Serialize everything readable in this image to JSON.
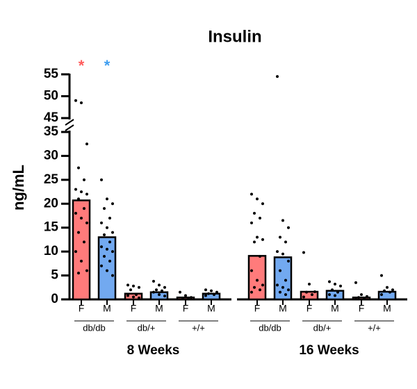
{
  "chart_data": {
    "type": "bar",
    "title": "Insulin",
    "y_label": "ng/mL",
    "ylim": [
      0,
      55
    ],
    "y_break": [
      35,
      45
    ],
    "yticks": [
      0,
      5,
      10,
      15,
      20,
      25,
      30,
      35,
      45,
      50,
      55
    ],
    "groups": [
      {
        "label": "8 Weeks",
        "subgroups": [
          {
            "label": "db/db",
            "bars": [
              {
                "category": "F",
                "color": "#ff7b7b",
                "annotation": "*",
                "annotation_color": "#ff5c5c",
                "value": 20.7,
                "points": [
                  49,
                  48.5,
                  32.5,
                  27.5,
                  25,
                  23,
                  22.5,
                  22,
                  21,
                  19,
                  18,
                  17,
                  16,
                  14,
                  12,
                  10,
                  8,
                  6,
                  5.5
                ]
              },
              {
                "category": "M",
                "color": "#72a9f0",
                "annotation": "*",
                "annotation_color": "#3f9ef0",
                "value": 13,
                "points": [
                  25,
                  21,
                  20,
                  19,
                  17,
                  16,
                  15,
                  14,
                  13.5,
                  12,
                  11,
                  10.5,
                  10,
                  9,
                  8,
                  7,
                  6,
                  5
                ]
              }
            ]
          },
          {
            "label": "db/+",
            "bars": [
              {
                "category": "F",
                "color": "#ff7b7b",
                "value": 1.2,
                "points": [
                  3,
                  2.8,
                  2.5,
                  2,
                  1,
                  0.8,
                  0.5,
                  0.3
                ]
              },
              {
                "category": "M",
                "color": "#72a9f0",
                "value": 1.5,
                "points": [
                  3.8,
                  3,
                  2.5,
                  2,
                  1.8,
                  1.5,
                  1,
                  0.7
                ]
              }
            ]
          },
          {
            "label": "+/+",
            "bars": [
              {
                "category": "F",
                "color": "#ff7b7b",
                "value": 0.4,
                "points": [
                  1.5,
                  0.8,
                  0.4,
                  0.2,
                  0.1
                ]
              },
              {
                "category": "M",
                "color": "#72a9f0",
                "value": 1.2,
                "points": [
                  2,
                  1.8,
                  1.5,
                  1.2,
                  1,
                  0.8
                ]
              }
            ]
          }
        ]
      },
      {
        "label": "16 Weeks",
        "subgroups": [
          {
            "label": "db/db",
            "bars": [
              {
                "category": "F",
                "color": "#ff7b7b",
                "value": 9.1,
                "points": [
                  22,
                  21,
                  20,
                  18,
                  17,
                  16,
                  13,
                  12.5,
                  12,
                  9,
                  6,
                  4,
                  3,
                  2.5,
                  2,
                  1.5
                ]
              },
              {
                "category": "M",
                "color": "#72a9f0",
                "value": 8.8,
                "points": [
                  54.5,
                  16.5,
                  15,
                  13,
                  12,
                  10,
                  9.5,
                  8,
                  6,
                  4,
                  3,
                  2.5,
                  2,
                  1.5,
                  1
                ]
              }
            ]
          },
          {
            "label": "db/+",
            "bars": [
              {
                "category": "F",
                "color": "#ff7b7b",
                "value": 1.6,
                "points": [
                  9.8,
                  3.2,
                  1.6,
                  1.5,
                  1,
                  0.5
                ]
              },
              {
                "category": "M",
                "color": "#72a9f0",
                "value": 1.8,
                "points": [
                  3.7,
                  3.2,
                  2.8,
                  2,
                  1.5,
                  1,
                  0.8
                ]
              }
            ]
          },
          {
            "label": "+/+",
            "bars": [
              {
                "category": "F",
                "color": "#ff7b7b",
                "value": 0.4,
                "points": [
                  3.5,
                  1,
                  0.6,
                  0.4,
                  0.2,
                  0.1
                ]
              },
              {
                "category": "M",
                "color": "#72a9f0",
                "value": 1.6,
                "points": [
                  5,
                  2.5,
                  2,
                  1.8,
                  1.5,
                  1
                ]
              }
            ]
          }
        ]
      }
    ]
  }
}
